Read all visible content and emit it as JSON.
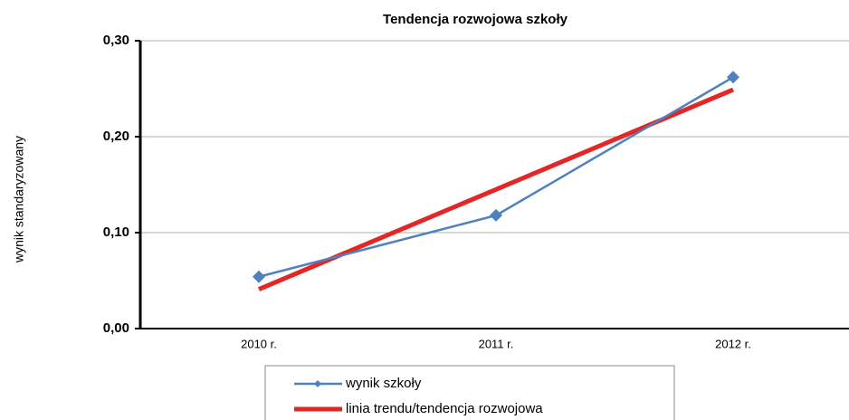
{
  "chart_data": {
    "type": "line",
    "title": "Tendencja rozwojowa szkoły",
    "y_label": "wynik standaryzowany",
    "categories": [
      "2010 r.",
      "2011 r.",
      "2012 r."
    ],
    "series": [
      {
        "name": "wynik szkoły",
        "color": "#4f81bd",
        "marker": true,
        "values": [
          0.054,
          0.118,
          0.262
        ]
      },
      {
        "name": "linia trendu/tendencja rozwojowa",
        "color": "#e32626",
        "marker": false,
        "values": [
          0.041,
          0.145,
          0.249
        ]
      }
    ],
    "ylim": [
      0,
      0.3
    ],
    "yticks": [
      {
        "value": 0,
        "label": "0,00"
      },
      {
        "value": 0.1,
        "label": "0,10"
      },
      {
        "value": 0.2,
        "label": "0,20"
      },
      {
        "value": 0.3,
        "label": "0,30"
      }
    ],
    "grid": true
  }
}
